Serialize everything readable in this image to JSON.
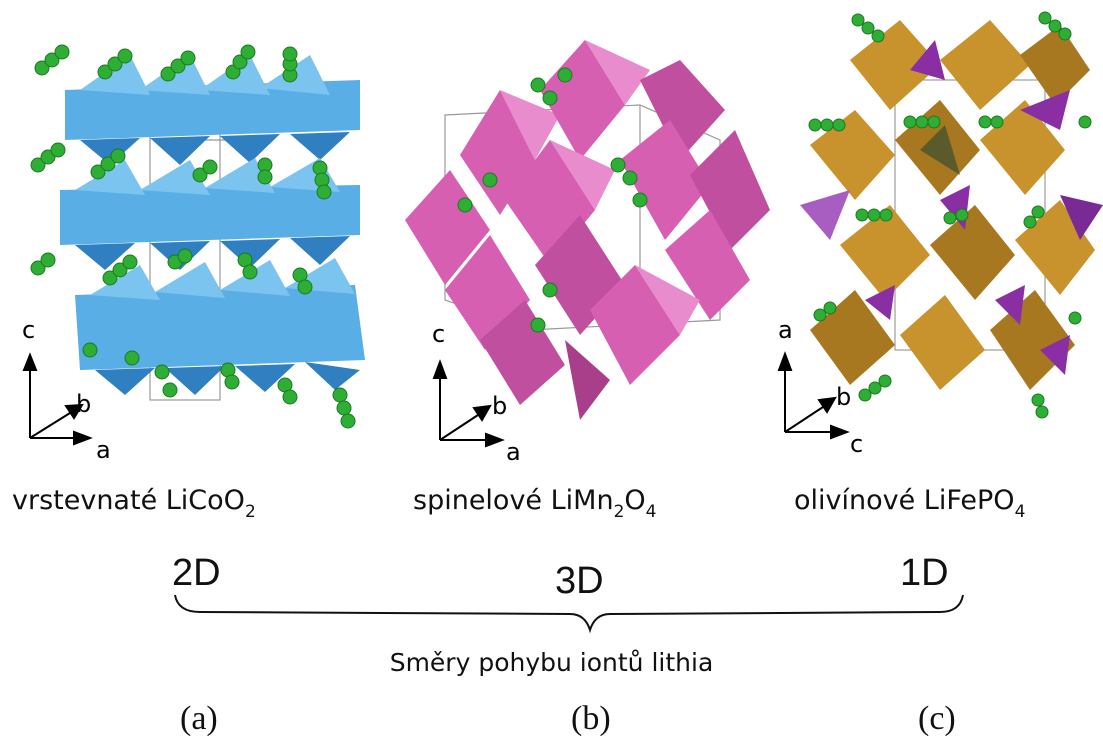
{
  "panels": [
    {
      "material": "vrstevnaté LiCoO",
      "subscripts": [
        "2"
      ],
      "dimension": "2D",
      "letter": "(a)",
      "axes": {
        "up": "c",
        "diag": "b",
        "right": "a"
      },
      "colors": {
        "polyhedra": "#5aaee6",
        "polyhedra_dark": "#2f7fc1",
        "lithium": "#2fae35"
      }
    },
    {
      "material": "spinelové LiMn",
      "subscript_main": "2",
      "material_tail": "O",
      "subscript_tail": "4",
      "dimension": "3D",
      "letter": "(b)",
      "axes": {
        "up": "c",
        "diag": "b",
        "right": "a"
      },
      "colors": {
        "polyhedra": "#d65fb2",
        "polyhedra_dark": "#a93f8b",
        "lithium": "#2fae35"
      }
    },
    {
      "material": "olivínové LiFePO",
      "subscripts": [
        "4"
      ],
      "dimension": "1D",
      "letter": "(c)",
      "axes": {
        "up": "a",
        "diag": "b",
        "right": "c"
      },
      "colors": {
        "octahedra": "#c8922c",
        "tetrahedra": "#8a2fa3",
        "lithium": "#2fae35"
      }
    }
  ],
  "brace_caption": "Směry pohybu iontů lithia"
}
